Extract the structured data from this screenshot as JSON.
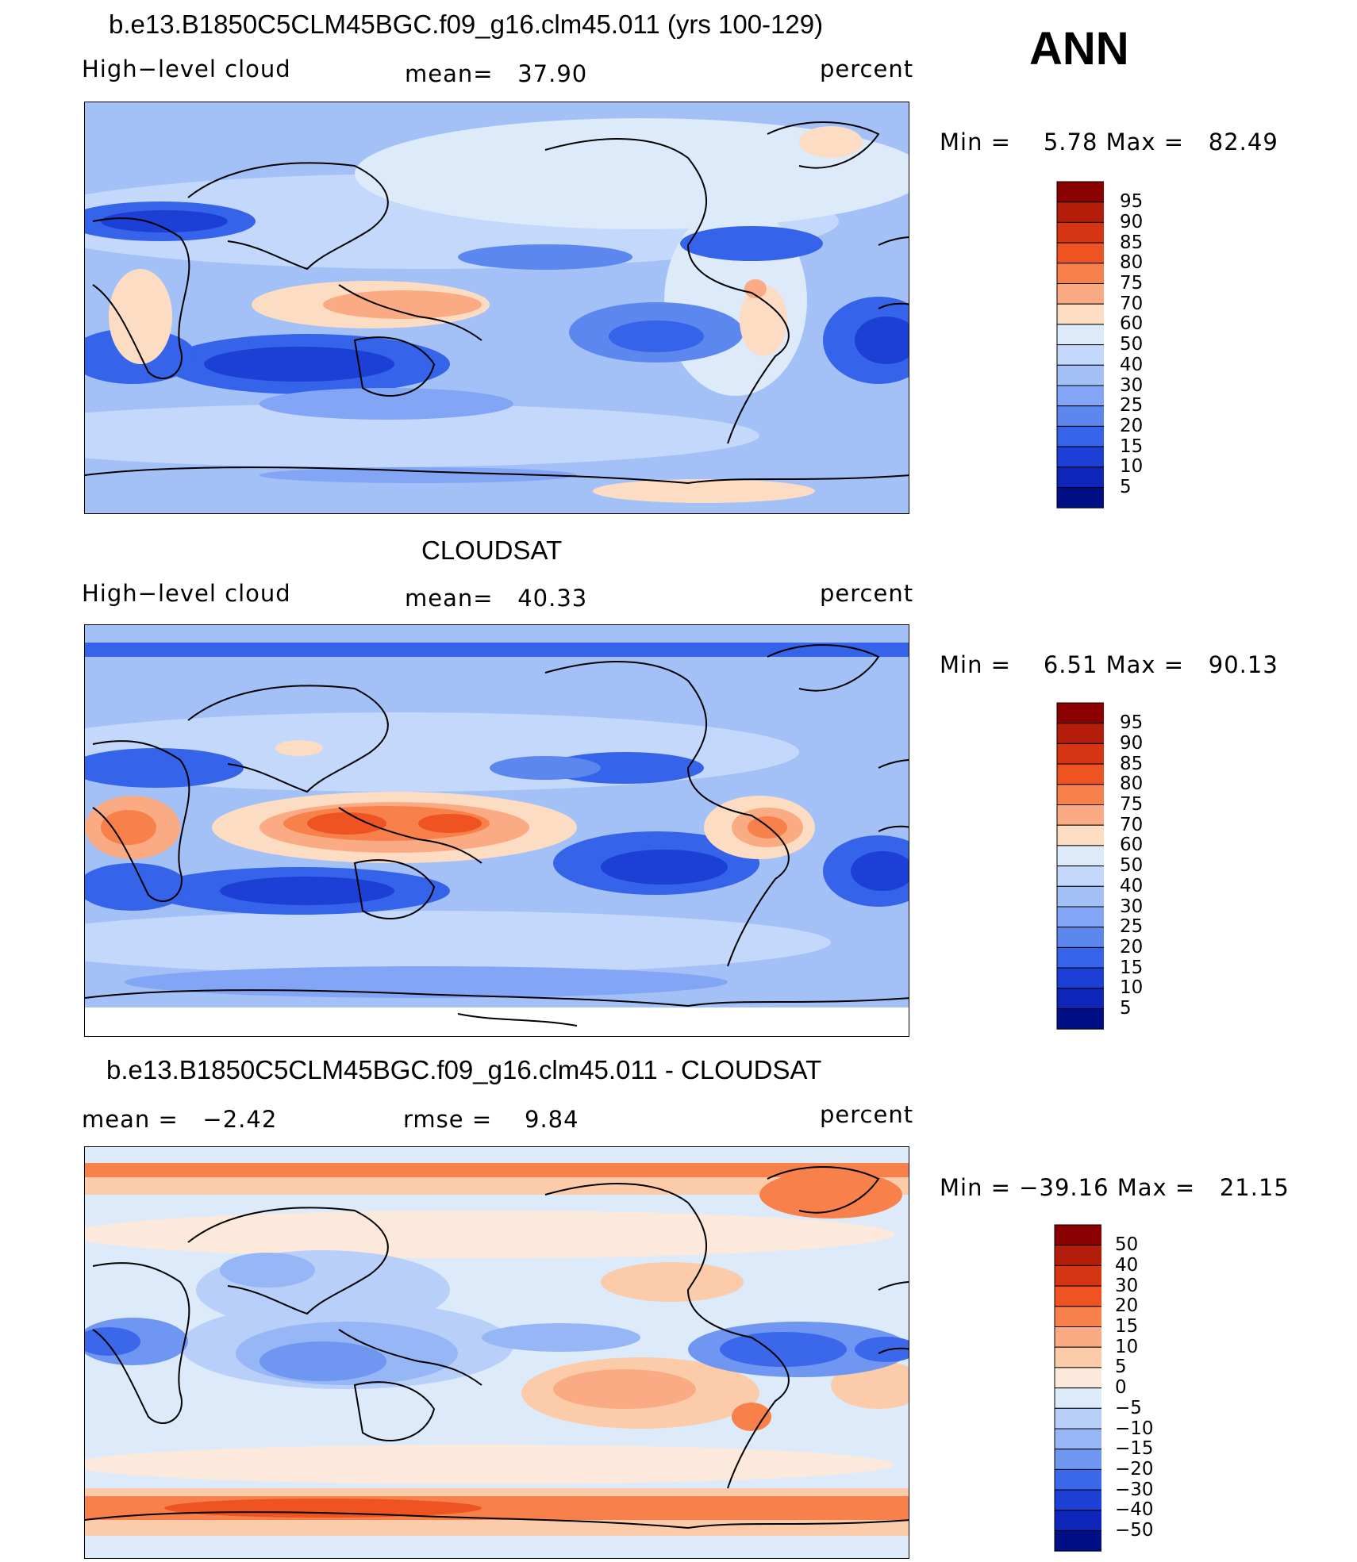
{
  "figure": {
    "season_label": "ANN",
    "panel1": {
      "title": "b.e13.B1850C5CLM45BGC.f09_g16.clm45.011 (yrs 100-129)",
      "left_label": "High−level cloud",
      "mean_text": "mean=   37.90",
      "units": "percent",
      "minmax_text": "Min =    5.78 Max =   82.49"
    },
    "panel2": {
      "title": "CLOUDSAT",
      "left_label": "High−level cloud",
      "mean_text": "mean=   40.33",
      "units": "percent",
      "minmax_text": "Min =    6.51 Max =   90.13"
    },
    "panel3": {
      "title": "b.e13.B1850C5CLM45BGC.f09_g16.clm45.011 - CLOUDSAT",
      "mean_text": "mean =   −2.42",
      "rmse_text": "rmse =    9.84",
      "units": "percent",
      "minmax_text": "Min = −39.16 Max =   21.15"
    }
  },
  "chart_data": [
    {
      "type": "heatmap",
      "title": "b.e13.B1850C5CLM45BGC.f09_g16.clm45.011 (yrs 100-129)",
      "variable": "High−level cloud",
      "units": "percent",
      "mean": 37.9,
      "min": 5.78,
      "max": 82.49,
      "levels": [
        "95",
        "90",
        "85",
        "80",
        "75",
        "70",
        "60",
        "50",
        "40",
        "30",
        "25",
        "20",
        "15",
        "10",
        "5"
      ],
      "colors": [
        "#8b0000",
        "#b31d0a",
        "#d53512",
        "#ef5322",
        "#f8804a",
        "#fbab84",
        "#fddcc4",
        "#dceafa",
        "#c3d8fb",
        "#a3c0f7",
        "#82a6f5",
        "#5b87ef",
        "#3563ea",
        "#1c40d6",
        "#0d25b8",
        "#000f85"
      ]
    },
    {
      "type": "heatmap",
      "title": "CLOUDSAT",
      "variable": "High−level cloud",
      "units": "percent",
      "mean": 40.33,
      "min": 6.51,
      "max": 90.13,
      "levels": [
        "95",
        "90",
        "85",
        "80",
        "75",
        "70",
        "60",
        "50",
        "40",
        "30",
        "25",
        "20",
        "15",
        "10",
        "5"
      ],
      "colors": [
        "#8b0000",
        "#b31d0a",
        "#d53512",
        "#ef5322",
        "#f8804a",
        "#fbab84",
        "#fddcc4",
        "#dceafa",
        "#c3d8fb",
        "#a3c0f7",
        "#82a6f5",
        "#5b87ef",
        "#3563ea",
        "#1c40d6",
        "#0d25b8",
        "#000f85"
      ]
    },
    {
      "type": "heatmap",
      "title": "b.e13.B1850C5CLM45BGC.f09_g16.clm45.011 - CLOUDSAT",
      "units": "percent",
      "mean": -2.42,
      "rmse": 9.84,
      "min": -39.16,
      "max": 21.15,
      "levels": [
        "50",
        "40",
        "30",
        "20",
        "15",
        "10",
        "5",
        "0",
        "−5",
        "−10",
        "−15",
        "−20",
        "−30",
        "−40",
        "−50"
      ],
      "colors": [
        "#8b0000",
        "#b31d0a",
        "#d53512",
        "#ef5322",
        "#f8804a",
        "#fbab84",
        "#fbcbaa",
        "#fde9dc",
        "#dceafa",
        "#b8cff9",
        "#96b6f6",
        "#6f96f1",
        "#3b68ea",
        "#1c40d6",
        "#0d25b8",
        "#000f85"
      ]
    }
  ]
}
